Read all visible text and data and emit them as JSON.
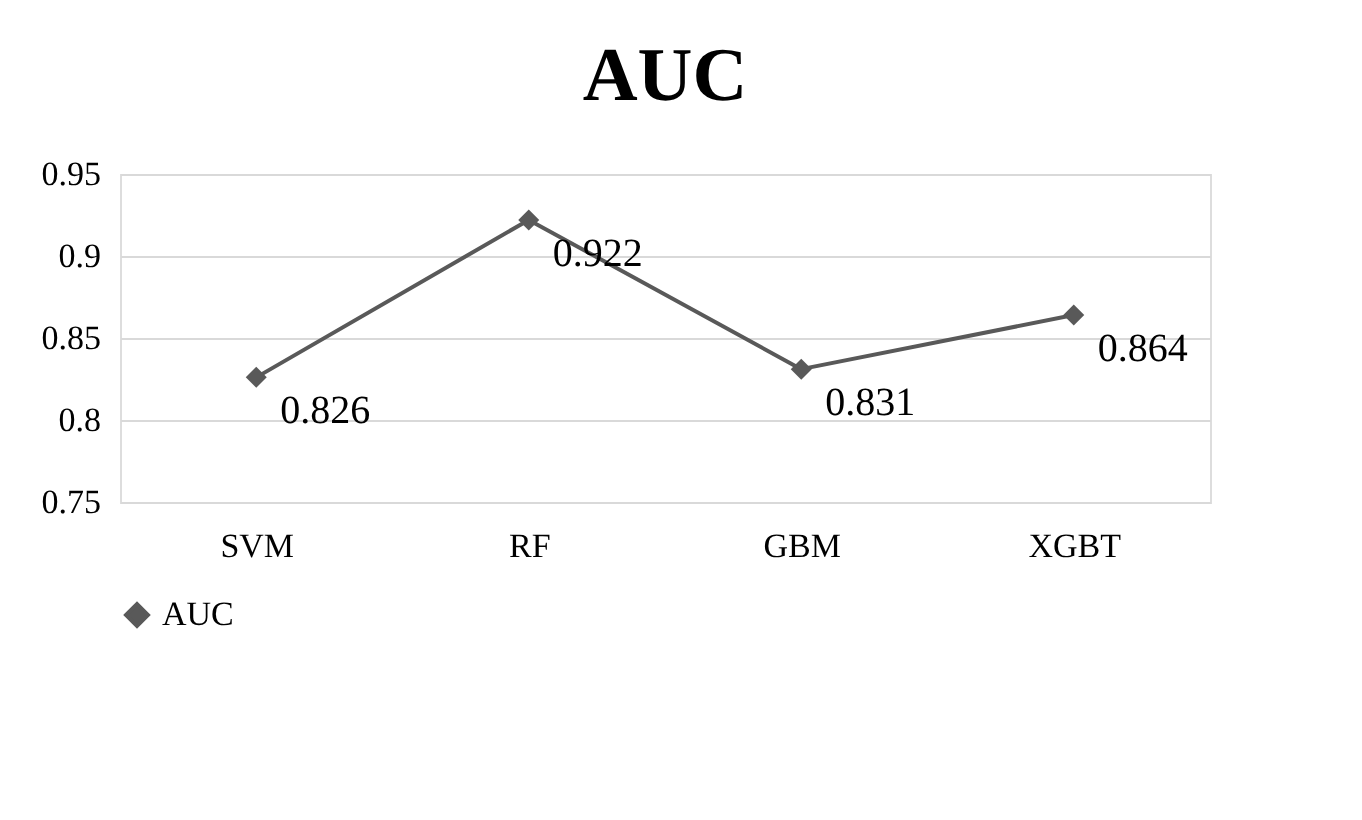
{
  "chart_data": {
    "type": "line",
    "title": "AUC",
    "categories": [
      "SVM",
      "RF",
      "GBM",
      "XGBT"
    ],
    "series": [
      {
        "name": "AUC",
        "color": "#595959",
        "values": [
          0.826,
          0.922,
          0.831,
          0.864
        ]
      }
    ],
    "ylim": [
      0.75,
      0.95
    ],
    "yticks": [
      0.75,
      0.8,
      0.85,
      0.9,
      0.95
    ],
    "grid": "y",
    "legend": "bottom",
    "marker": "diamond",
    "line_style": "solid",
    "data_labels": true
  }
}
